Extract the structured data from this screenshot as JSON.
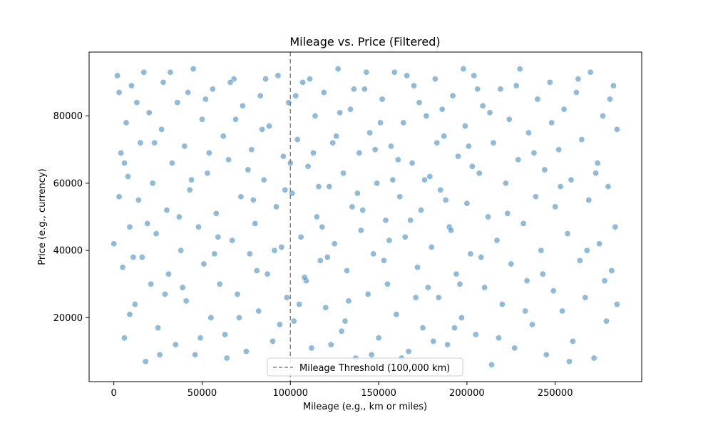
{
  "chart_data": {
    "type": "scatter",
    "title": "Mileage vs. Price (Filtered)",
    "xlabel": "Mileage (e.g., km or miles)",
    "ylabel": "Price (e.g., currency)",
    "xlim": [
      -14000,
      299000
    ],
    "ylim": [
      1000,
      99000
    ],
    "xticks": [
      0,
      50000,
      100000,
      150000,
      200000,
      250000
    ],
    "yticks": [
      20000,
      40000,
      60000,
      80000
    ],
    "xtick_labels": [
      "0",
      "50000",
      "100000",
      "150000",
      "200000",
      "250000"
    ],
    "ytick_labels": [
      "20000",
      "40000",
      "60000",
      "80000"
    ],
    "grid": false,
    "legend_position": "bottom-center",
    "threshold": {
      "x": 100000,
      "label": "Mileage Threshold (100,000 km)",
      "color": "#808080"
    },
    "series": [
      {
        "color": "#1f77b4",
        "opacity": 0.5,
        "points": [
          [
            0,
            42000
          ],
          [
            2000,
            92000
          ],
          [
            3000,
            87000
          ],
          [
            4000,
            69000
          ],
          [
            5000,
            35000
          ],
          [
            6000,
            14000
          ],
          [
            7000,
            78000
          ],
          [
            8000,
            62000
          ],
          [
            9000,
            47000
          ],
          [
            10000,
            89000
          ],
          [
            12000,
            24000
          ],
          [
            14000,
            55000
          ],
          [
            15000,
            72000
          ],
          [
            16000,
            38000
          ],
          [
            17000,
            93000
          ],
          [
            18000,
            7000
          ],
          [
            20000,
            81000
          ],
          [
            21000,
            30000
          ],
          [
            22000,
            60000
          ],
          [
            24000,
            45000
          ],
          [
            25000,
            17000
          ],
          [
            27000,
            76000
          ],
          [
            28000,
            90000
          ],
          [
            30000,
            52000
          ],
          [
            31000,
            33000
          ],
          [
            33000,
            66000
          ],
          [
            35000,
            12000
          ],
          [
            36000,
            84000
          ],
          [
            38000,
            40000
          ],
          [
            40000,
            71000
          ],
          [
            41000,
            25000
          ],
          [
            43000,
            58000
          ],
          [
            45000,
            94000
          ],
          [
            46000,
            9000
          ],
          [
            48000,
            47000
          ],
          [
            50000,
            79000
          ],
          [
            51000,
            36000
          ],
          [
            53000,
            63000
          ],
          [
            55000,
            20000
          ],
          [
            56000,
            88000
          ],
          [
            58000,
            51000
          ],
          [
            60000,
            30000
          ],
          [
            62000,
            74000
          ],
          [
            63000,
            15000
          ],
          [
            65000,
            67000
          ],
          [
            67000,
            43000
          ],
          [
            68000,
            91000
          ],
          [
            70000,
            27000
          ],
          [
            72000,
            56000
          ],
          [
            73000,
            83000
          ],
          [
            75000,
            10000
          ],
          [
            77000,
            39000
          ],
          [
            78000,
            70000
          ],
          [
            80000,
            48000
          ],
          [
            82000,
            22000
          ],
          [
            83000,
            86000
          ],
          [
            85000,
            61000
          ],
          [
            87000,
            33000
          ],
          [
            88000,
            77000
          ],
          [
            90000,
            13000
          ],
          [
            92000,
            53000
          ],
          [
            93000,
            92000
          ],
          [
            95000,
            41000
          ],
          [
            96000,
            68000
          ],
          [
            98000,
            26000
          ],
          [
            99000,
            84000
          ],
          [
            101000,
            57000
          ],
          [
            102000,
            19000
          ],
          [
            104000,
            73000
          ],
          [
            106000,
            44000
          ],
          [
            107000,
            90000
          ],
          [
            109000,
            31000
          ],
          [
            110000,
            65000
          ],
          [
            112000,
            11000
          ],
          [
            114000,
            80000
          ],
          [
            115000,
            50000
          ],
          [
            117000,
            37000
          ],
          [
            119000,
            87000
          ],
          [
            120000,
            23000
          ],
          [
            122000,
            59000
          ],
          [
            124000,
            72000
          ],
          [
            125000,
            42000
          ],
          [
            127000,
            94000
          ],
          [
            129000,
            16000
          ],
          [
            130000,
            63000
          ],
          [
            132000,
            34000
          ],
          [
            134000,
            82000
          ],
          [
            135000,
            53000
          ],
          [
            137000,
            8000
          ],
          [
            139000,
            69000
          ],
          [
            140000,
            46000
          ],
          [
            142000,
            88000
          ],
          [
            144000,
            27000
          ],
          [
            145000,
            75000
          ],
          [
            147000,
            39000
          ],
          [
            149000,
            60000
          ],
          [
            150000,
            14000
          ],
          [
            152000,
            85000
          ],
          [
            154000,
            49000
          ],
          [
            155000,
            30000
          ],
          [
            157000,
            71000
          ],
          [
            159000,
            93000
          ],
          [
            160000,
            21000
          ],
          [
            162000,
            56000
          ],
          [
            164000,
            78000
          ],
          [
            165000,
            44000
          ],
          [
            167000,
            10000
          ],
          [
            169000,
            66000
          ],
          [
            170000,
            89000
          ],
          [
            172000,
            35000
          ],
          [
            174000,
            52000
          ],
          [
            175000,
            17000
          ],
          [
            177000,
            80000
          ],
          [
            179000,
            62000
          ],
          [
            180000,
            41000
          ],
          [
            182000,
            91000
          ],
          [
            184000,
            26000
          ],
          [
            185000,
            58000
          ],
          [
            187000,
            74000
          ],
          [
            189000,
            12000
          ],
          [
            190000,
            47000
          ],
          [
            192000,
            86000
          ],
          [
            194000,
            33000
          ],
          [
            195000,
            68000
          ],
          [
            197000,
            20000
          ],
          [
            199000,
            77000
          ],
          [
            200000,
            54000
          ],
          [
            202000,
            39000
          ],
          [
            204000,
            92000
          ],
          [
            205000,
            15000
          ],
          [
            207000,
            63000
          ],
          [
            209000,
            83000
          ],
          [
            210000,
            29000
          ],
          [
            212000,
            50000
          ],
          [
            214000,
            6000
          ],
          [
            215000,
            72000
          ],
          [
            217000,
            43000
          ],
          [
            219000,
            88000
          ],
          [
            220000,
            24000
          ],
          [
            222000,
            60000
          ],
          [
            224000,
            79000
          ],
          [
            225000,
            36000
          ],
          [
            227000,
            11000
          ],
          [
            229000,
            67000
          ],
          [
            230000,
            94000
          ],
          [
            232000,
            48000
          ],
          [
            234000,
            31000
          ],
          [
            235000,
            75000
          ],
          [
            237000,
            18000
          ],
          [
            239000,
            56000
          ],
          [
            240000,
            85000
          ],
          [
            242000,
            40000
          ],
          [
            244000,
            64000
          ],
          [
            245000,
            9000
          ],
          [
            247000,
            90000
          ],
          [
            249000,
            28000
          ],
          [
            250000,
            53000
          ],
          [
            252000,
            70000
          ],
          [
            254000,
            22000
          ],
          [
            255000,
            82000
          ],
          [
            257000,
            45000
          ],
          [
            259000,
            61000
          ],
          [
            260000,
            13000
          ],
          [
            262000,
            87000
          ],
          [
            264000,
            37000
          ],
          [
            265000,
            73000
          ],
          [
            267000,
            26000
          ],
          [
            269000,
            55000
          ],
          [
            270000,
            93000
          ],
          [
            272000,
            8000
          ],
          [
            274000,
            66000
          ],
          [
            275000,
            42000
          ],
          [
            277000,
            80000
          ],
          [
            279000,
            19000
          ],
          [
            280000,
            59000
          ],
          [
            282000,
            34000
          ],
          [
            283000,
            89000
          ],
          [
            284000,
            47000
          ],
          [
            285000,
            76000
          ],
          [
            285000,
            24000
          ],
          [
            3000,
            56000
          ],
          [
            9000,
            21000
          ],
          [
            13000,
            84000
          ],
          [
            19000,
            48000
          ],
          [
            26000,
            9000
          ],
          [
            32000,
            93000
          ],
          [
            39000,
            29000
          ],
          [
            44000,
            61000
          ],
          [
            52000,
            85000
          ],
          [
            57000,
            39000
          ],
          [
            64000,
            8000
          ],
          [
            69000,
            79000
          ],
          [
            76000,
            64000
          ],
          [
            81000,
            34000
          ],
          [
            86000,
            91000
          ],
          [
            94000,
            18000
          ],
          [
            97000,
            58000
          ],
          [
            103000,
            86000
          ],
          [
            108000,
            32000
          ],
          [
            113000,
            69000
          ],
          [
            118000,
            47000
          ],
          [
            123000,
            12000
          ],
          [
            128000,
            81000
          ],
          [
            133000,
            25000
          ],
          [
            138000,
            57000
          ],
          [
            143000,
            93000
          ],
          [
            148000,
            70000
          ],
          [
            153000,
            37000
          ],
          [
            158000,
            61000
          ],
          [
            163000,
            8000
          ],
          [
            168000,
            49000
          ],
          [
            173000,
            84000
          ],
          [
            178000,
            29000
          ],
          [
            183000,
            72000
          ],
          [
            188000,
            55000
          ],
          [
            193000,
            17000
          ],
          [
            198000,
            94000
          ],
          [
            203000,
            65000
          ],
          [
            208000,
            38000
          ],
          [
            213000,
            81000
          ],
          [
            218000,
            14000
          ],
          [
            223000,
            51000
          ],
          [
            228000,
            89000
          ],
          [
            233000,
            22000
          ],
          [
            238000,
            69000
          ],
          [
            243000,
            33000
          ],
          [
            248000,
            78000
          ],
          [
            253000,
            59000
          ],
          [
            258000,
            7000
          ],
          [
            263000,
            91000
          ],
          [
            268000,
            40000
          ],
          [
            273000,
            63000
          ],
          [
            278000,
            31000
          ],
          [
            281000,
            85000
          ],
          [
            6000,
            66000
          ],
          [
            11000,
            38000
          ],
          [
            23000,
            72000
          ],
          [
            29000,
            27000
          ],
          [
            37000,
            50000
          ],
          [
            42000,
            87000
          ],
          [
            49000,
            14000
          ],
          [
            54000,
            69000
          ],
          [
            59000,
            44000
          ],
          [
            66000,
            90000
          ],
          [
            71000,
            20000
          ],
          [
            79000,
            55000
          ],
          [
            84000,
            76000
          ],
          [
            91000,
            40000
          ],
          [
            100000,
            66000
          ],
          [
            105000,
            24000
          ],
          [
            111000,
            91000
          ],
          [
            116000,
            59000
          ],
          [
            121000,
            38000
          ],
          [
            126000,
            74000
          ],
          [
            131000,
            19000
          ],
          [
            136000,
            88000
          ],
          [
            141000,
            52000
          ],
          [
            146000,
            9000
          ],
          [
            151000,
            78000
          ],
          [
            156000,
            43000
          ],
          [
            161000,
            67000
          ],
          [
            166000,
            92000
          ],
          [
            171000,
            26000
          ],
          [
            176000,
            61000
          ],
          [
            181000,
            13000
          ],
          [
            186000,
            82000
          ],
          [
            191000,
            46000
          ],
          [
            196000,
            30000
          ],
          [
            201000,
            71000
          ],
          [
            206000,
            88000
          ]
        ]
      }
    ]
  }
}
